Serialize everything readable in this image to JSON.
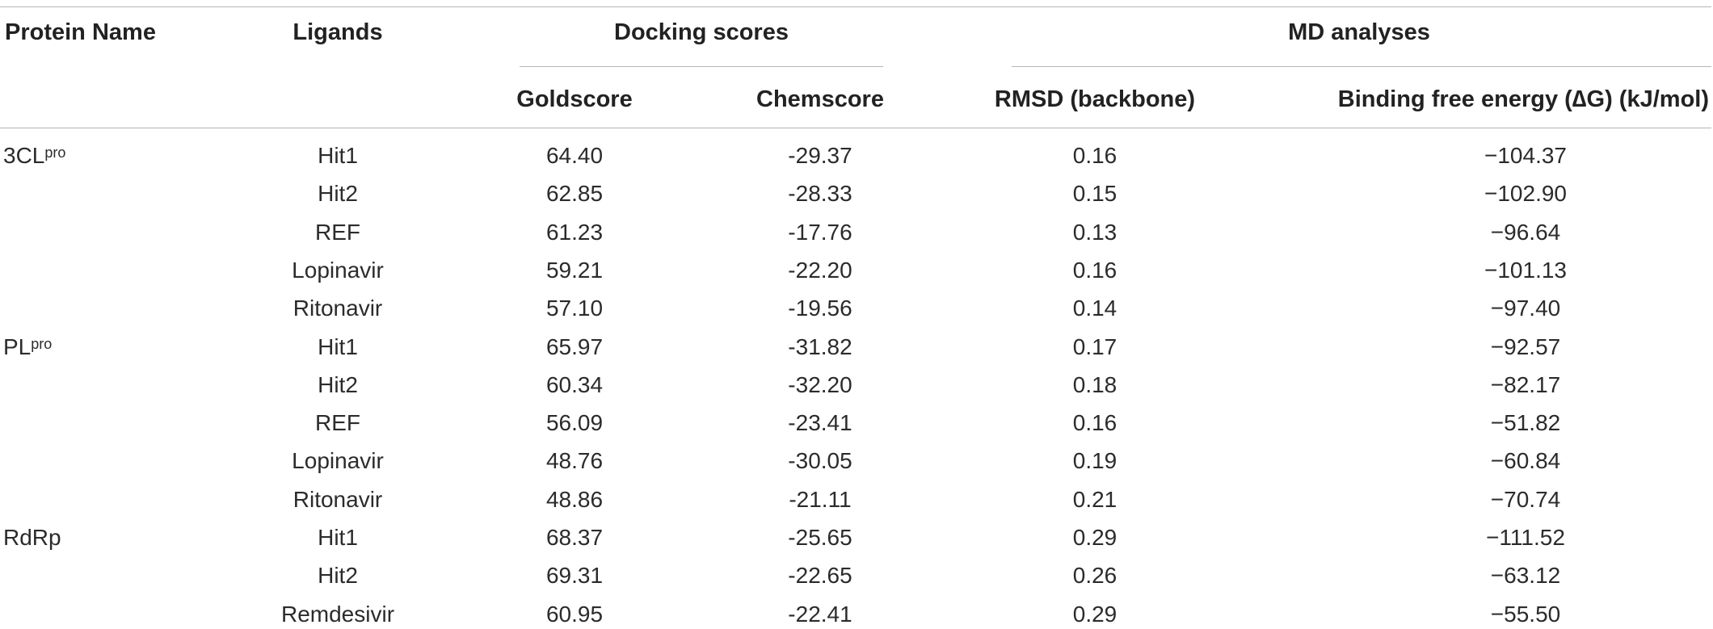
{
  "table": {
    "headers": {
      "protein_name": "Protein Name",
      "ligands": "Ligands",
      "docking_scores": "Docking scores",
      "md_analyses": "MD analyses",
      "goldscore": "Goldscore",
      "chemscore": "Chemscore",
      "rmsd": "RMSD (backbone)",
      "binding_free_energy": "Binding free energy (∆G) (kJ/mol)"
    },
    "rows": [
      {
        "protein": "3CL",
        "protein_sup": "pro",
        "ligand": "Hit1",
        "goldscore": "64.40",
        "chemscore": "-29.37",
        "rmsd": "0.16",
        "dg": "−104.37"
      },
      {
        "protein": "",
        "protein_sup": "",
        "ligand": "Hit2",
        "goldscore": "62.85",
        "chemscore": "-28.33",
        "rmsd": "0.15",
        "dg": "−102.90"
      },
      {
        "protein": "",
        "protein_sup": "",
        "ligand": "REF",
        "goldscore": "61.23",
        "chemscore": "-17.76",
        "rmsd": "0.13",
        "dg": "−96.64"
      },
      {
        "protein": "",
        "protein_sup": "",
        "ligand": "Lopinavir",
        "goldscore": "59.21",
        "chemscore": "-22.20",
        "rmsd": "0.16",
        "dg": "−101.13"
      },
      {
        "protein": "",
        "protein_sup": "",
        "ligand": "Ritonavir",
        "goldscore": "57.10",
        "chemscore": "-19.56",
        "rmsd": "0.14",
        "dg": "−97.40"
      },
      {
        "protein": "PL",
        "protein_sup": "pro",
        "ligand": "Hit1",
        "goldscore": "65.97",
        "chemscore": "-31.82",
        "rmsd": "0.17",
        "dg": "−92.57"
      },
      {
        "protein": "",
        "protein_sup": "",
        "ligand": "Hit2",
        "goldscore": "60.34",
        "chemscore": "-32.20",
        "rmsd": "0.18",
        "dg": "−82.17"
      },
      {
        "protein": "",
        "protein_sup": "",
        "ligand": "REF",
        "goldscore": "56.09",
        "chemscore": "-23.41",
        "rmsd": "0.16",
        "dg": "−51.82"
      },
      {
        "protein": "",
        "protein_sup": "",
        "ligand": "Lopinavir",
        "goldscore": "48.76",
        "chemscore": "-30.05",
        "rmsd": "0.19",
        "dg": "−60.84"
      },
      {
        "protein": "",
        "protein_sup": "",
        "ligand": "Ritonavir",
        "goldscore": "48.86",
        "chemscore": "-21.11",
        "rmsd": "0.21",
        "dg": "−70.74"
      },
      {
        "protein": "RdRp",
        "protein_sup": "",
        "ligand": "Hit1",
        "goldscore": "68.37",
        "chemscore": "-25.65",
        "rmsd": "0.29",
        "dg": "−111.52"
      },
      {
        "protein": "",
        "protein_sup": "",
        "ligand": "Hit2",
        "goldscore": "69.31",
        "chemscore": "-22.65",
        "rmsd": "0.26",
        "dg": "−63.12"
      },
      {
        "protein": "",
        "protein_sup": "",
        "ligand": "Remdesivir",
        "goldscore": "60.95",
        "chemscore": "-22.41",
        "rmsd": "0.29",
        "dg": "−55.50"
      }
    ]
  }
}
